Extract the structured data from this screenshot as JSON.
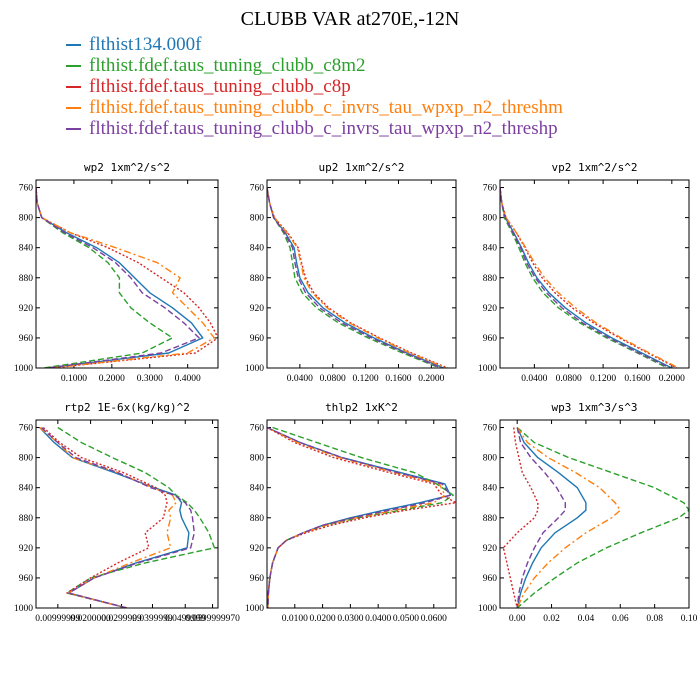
{
  "title": "CLUBB VAR at270E,-12N",
  "series": [
    {
      "name": "flthist134.000f",
      "color": "#1f77b4",
      "dash": "solid"
    },
    {
      "name": "flthist.fdef.taus_tuning_clubb_c8m2",
      "color": "#2ca02c",
      "dash": "dashed"
    },
    {
      "name": "flthist.fdef.taus_tuning_clubb_c8p",
      "color": "#d62728",
      "dash": "dotted"
    },
    {
      "name": "flthist.fdef.taus_tuning_clubb_c_invrs_tau_wpxp_n2_threshm",
      "color": "#ff7f0e",
      "dash": "dashdot"
    },
    {
      "name": "flthist.fdef.taus_tuning_clubb_c_invrs_tau_wpxp_n2_threshp",
      "color": "#7b3fa0",
      "dash": "dashed"
    }
  ],
  "chart_data": [
    {
      "type": "line",
      "title": "wp2  1xm^2/s^2",
      "xlim": [
        0,
        0.48
      ],
      "xticks": [
        0.1,
        0.2,
        0.3,
        0.4
      ],
      "xtick_labels": [
        "0.1000",
        "0.2000",
        "0.3000",
        "0.4000"
      ],
      "ylim": [
        1000,
        750
      ],
      "yticks": [
        760,
        800,
        840,
        880,
        920,
        960,
        1000
      ],
      "y": [
        760,
        780,
        800,
        820,
        840,
        860,
        880,
        900,
        920,
        940,
        960,
        980,
        1000
      ],
      "series": [
        {
          "name": "flthist134.000f",
          "values": [
            0.0,
            0.003,
            0.015,
            0.08,
            0.16,
            0.22,
            0.26,
            0.3,
            0.36,
            0.41,
            0.44,
            0.35,
            0.03
          ]
        },
        {
          "name": "flthist.fdef.taus_tuning_clubb_c8m2",
          "values": [
            0.0,
            0.003,
            0.015,
            0.07,
            0.14,
            0.19,
            0.22,
            0.22,
            0.25,
            0.3,
            0.36,
            0.28,
            0.02
          ]
        },
        {
          "name": "flthist.fdef.taus_tuning_clubb_c8p",
          "values": [
            0.0,
            0.003,
            0.015,
            0.09,
            0.19,
            0.27,
            0.33,
            0.39,
            0.43,
            0.46,
            0.48,
            0.42,
            0.04
          ]
        },
        {
          "name": "flthist.fdef.taus_tuning_clubb_c_invrs_tau_wpxp_n2_threshm",
          "values": [
            0.0,
            0.003,
            0.015,
            0.09,
            0.21,
            0.32,
            0.38,
            0.36,
            0.4,
            0.44,
            0.47,
            0.4,
            0.04
          ]
        },
        {
          "name": "flthist.fdef.taus_tuning_clubb_c_invrs_tau_wpxp_n2_threshp",
          "values": [
            0.0,
            0.003,
            0.015,
            0.075,
            0.15,
            0.21,
            0.25,
            0.28,
            0.34,
            0.39,
            0.43,
            0.33,
            0.03
          ]
        }
      ]
    },
    {
      "type": "line",
      "title": "up2  1xm^2/s^2",
      "xlim": [
        0,
        0.23
      ],
      "xticks": [
        0.04,
        0.08,
        0.12,
        0.16,
        0.2
      ],
      "xtick_labels": [
        "0.0400",
        "0.0800",
        "0.1200",
        "0.1600",
        "0.2000"
      ],
      "ylim": [
        1000,
        750
      ],
      "yticks": [
        760,
        800,
        840,
        880,
        920,
        960,
        1000
      ],
      "y": [
        760,
        780,
        800,
        820,
        840,
        860,
        880,
        900,
        920,
        940,
        960,
        980,
        1000
      ],
      "series": [
        {
          "name": "flthist134.000f",
          "values": [
            0.0,
            0.003,
            0.008,
            0.022,
            0.033,
            0.036,
            0.04,
            0.05,
            0.068,
            0.095,
            0.13,
            0.17,
            0.215
          ]
        },
        {
          "name": "flthist.fdef.taus_tuning_clubb_c8m2",
          "values": [
            0.0,
            0.003,
            0.008,
            0.02,
            0.028,
            0.031,
            0.034,
            0.043,
            0.06,
            0.087,
            0.123,
            0.165,
            0.21
          ]
        },
        {
          "name": "flthist.fdef.taus_tuning_clubb_c8p",
          "values": [
            0.0,
            0.003,
            0.009,
            0.025,
            0.038,
            0.042,
            0.047,
            0.057,
            0.075,
            0.102,
            0.137,
            0.176,
            0.22
          ]
        },
        {
          "name": "flthist.fdef.taus_tuning_clubb_c_invrs_tau_wpxp_n2_threshm",
          "values": [
            0.0,
            0.003,
            0.009,
            0.024,
            0.037,
            0.041,
            0.045,
            0.055,
            0.073,
            0.1,
            0.135,
            0.174,
            0.218
          ]
        },
        {
          "name": "flthist.fdef.taus_tuning_clubb_c_invrs_tau_wpxp_n2_threshp",
          "values": [
            0.0,
            0.003,
            0.008,
            0.021,
            0.031,
            0.034,
            0.038,
            0.047,
            0.064,
            0.091,
            0.127,
            0.168,
            0.212
          ]
        }
      ]
    },
    {
      "type": "line",
      "title": "vp2  1xm^2/s^2",
      "xlim": [
        0,
        0.22
      ],
      "xticks": [
        0.04,
        0.08,
        0.12,
        0.16,
        0.2
      ],
      "xtick_labels": [
        "0.0400",
        "0.0800",
        "0.1200",
        "0.1600",
        "0.2000"
      ],
      "ylim": [
        1000,
        750
      ],
      "yticks": [
        760,
        800,
        840,
        880,
        920,
        960,
        1000
      ],
      "y": [
        760,
        780,
        800,
        820,
        840,
        860,
        880,
        900,
        920,
        940,
        960,
        980,
        1000
      ],
      "series": [
        {
          "name": "flthist134.000f",
          "values": [
            0.0,
            0.002,
            0.006,
            0.016,
            0.025,
            0.033,
            0.043,
            0.057,
            0.076,
            0.1,
            0.13,
            0.165,
            0.2
          ]
        },
        {
          "name": "flthist.fdef.taus_tuning_clubb_c8m2",
          "values": [
            0.0,
            0.002,
            0.005,
            0.014,
            0.022,
            0.029,
            0.038,
            0.05,
            0.068,
            0.093,
            0.124,
            0.16,
            0.195
          ]
        },
        {
          "name": "flthist.fdef.taus_tuning_clubb_c8p",
          "values": [
            0.0,
            0.002,
            0.007,
            0.019,
            0.029,
            0.038,
            0.049,
            0.064,
            0.084,
            0.109,
            0.139,
            0.172,
            0.206
          ]
        },
        {
          "name": "flthist.fdef.taus_tuning_clubb_c_invrs_tau_wpxp_n2_threshm",
          "values": [
            0.0,
            0.002,
            0.007,
            0.019,
            0.03,
            0.04,
            0.052,
            0.068,
            0.088,
            0.112,
            0.141,
            0.174,
            0.208
          ]
        },
        {
          "name": "flthist.fdef.taus_tuning_clubb_c_invrs_tau_wpxp_n2_threshp",
          "values": [
            0.0,
            0.002,
            0.006,
            0.015,
            0.024,
            0.031,
            0.041,
            0.054,
            0.072,
            0.096,
            0.127,
            0.162,
            0.198
          ]
        }
      ]
    },
    {
      "type": "line",
      "title": "rtp2  1E-6x(kg/kg)^2",
      "xlim": [
        0,
        1
      ],
      "xticks": [
        0.12,
        0.3,
        0.47,
        0.64,
        0.82,
        0.97
      ],
      "xtick_labels": [
        "0.00999999",
        "0.0200000",
        "0.0299999",
        "0.0399999",
        "0.0499999",
        "0.0599999970"
      ],
      "ylim": [
        1000,
        750
      ],
      "yticks": [
        760,
        800,
        840,
        880,
        920,
        960,
        1000
      ],
      "y": [
        760,
        780,
        800,
        820,
        840,
        850,
        860,
        870,
        880,
        900,
        920,
        940,
        960,
        980,
        1000
      ],
      "series": [
        {
          "name": "flthist134.000f",
          "values": [
            0.02,
            0.1,
            0.2,
            0.43,
            0.65,
            0.77,
            0.8,
            0.79,
            0.8,
            0.84,
            0.83,
            0.55,
            0.32,
            0.18,
            0.5
          ]
        },
        {
          "name": "flthist.fdef.taus_tuning_clubb_c8m2",
          "values": [
            0.12,
            0.25,
            0.42,
            0.6,
            0.73,
            0.77,
            0.83,
            0.87,
            0.9,
            0.95,
            0.98,
            0.6,
            0.3,
            0.17,
            0.5
          ]
        },
        {
          "name": "flthist.fdef.taus_tuning_clubb_c8p",
          "values": [
            0.04,
            0.13,
            0.25,
            0.48,
            0.66,
            0.71,
            0.72,
            0.71,
            0.7,
            0.6,
            0.62,
            0.45,
            0.3,
            0.17,
            0.5
          ]
        },
        {
          "name": "flthist.fdef.taus_tuning_clubb_c_invrs_tau_wpxp_n2_threshm",
          "values": [
            0.02,
            0.12,
            0.2,
            0.45,
            0.64,
            0.75,
            0.77,
            0.73,
            0.74,
            0.72,
            0.74,
            0.52,
            0.32,
            0.18,
            0.5
          ]
        },
        {
          "name": "flthist.fdef.taus_tuning_clubb_c_invrs_tau_wpxp_n2_threshp",
          "values": [
            0.03,
            0.12,
            0.22,
            0.45,
            0.63,
            0.76,
            0.82,
            0.85,
            0.86,
            0.87,
            0.85,
            0.56,
            0.32,
            0.18,
            0.5
          ]
        }
      ]
    },
    {
      "type": "line",
      "title": "thlp2  1xK^2",
      "xlim": [
        0,
        0.068
      ],
      "xticks": [
        0.01,
        0.02,
        0.03,
        0.04,
        0.05,
        0.06
      ],
      "xtick_labels": [
        "0.0100",
        "0.0200",
        "0.0300",
        "0.0400",
        "0.0500",
        "0.0600"
      ],
      "ylim": [
        1000,
        750
      ],
      "yticks": [
        760,
        800,
        840,
        880,
        920,
        960,
        1000
      ],
      "y": [
        760,
        780,
        800,
        820,
        835,
        850,
        860,
        870,
        880,
        890,
        900,
        910,
        920,
        940,
        960,
        980,
        1000
      ],
      "series": [
        {
          "name": "flthist134.000f",
          "values": [
            0.0,
            0.012,
            0.027,
            0.048,
            0.064,
            0.066,
            0.055,
            0.042,
            0.03,
            0.02,
            0.013,
            0.007,
            0.004,
            0.002,
            0.001,
            0.0005,
            0.0003
          ]
        },
        {
          "name": "flthist.fdef.taus_tuning_clubb_c8m2",
          "values": [
            0.002,
            0.018,
            0.034,
            0.053,
            0.061,
            0.067,
            0.063,
            0.048,
            0.033,
            0.021,
            0.013,
            0.007,
            0.004,
            0.002,
            0.001,
            0.0005,
            0.0003
          ]
        },
        {
          "name": "flthist.fdef.taus_tuning_clubb_c8p",
          "values": [
            0.0,
            0.01,
            0.024,
            0.044,
            0.06,
            0.063,
            0.068,
            0.05,
            0.035,
            0.023,
            0.014,
            0.007,
            0.004,
            0.002,
            0.001,
            0.0005,
            0.0003
          ]
        },
        {
          "name": "flthist.fdef.taus_tuning_clubb_c_invrs_tau_wpxp_n2_threshm",
          "values": [
            0.0,
            0.011,
            0.026,
            0.046,
            0.062,
            0.064,
            0.06,
            0.046,
            0.032,
            0.021,
            0.013,
            0.007,
            0.004,
            0.002,
            0.001,
            0.0005,
            0.0003
          ]
        },
        {
          "name": "flthist.fdef.taus_tuning_clubb_c_invrs_tau_wpxp_n2_threshp",
          "values": [
            0.0,
            0.012,
            0.027,
            0.047,
            0.063,
            0.066,
            0.057,
            0.044,
            0.031,
            0.02,
            0.013,
            0.007,
            0.004,
            0.002,
            0.001,
            0.0005,
            0.0003
          ]
        }
      ]
    },
    {
      "type": "line",
      "title": "wp3  1xm^3/s^3",
      "xlim": [
        -0.01,
        0.1
      ],
      "xticks": [
        0,
        0.02,
        0.04,
        0.06,
        0.08,
        0.1
      ],
      "xtick_labels": [
        "0.00",
        "0.02",
        "0.04",
        "0.06",
        "0.08",
        "0.10"
      ],
      "ylim": [
        1000,
        750
      ],
      "yticks": [
        760,
        800,
        840,
        880,
        920,
        960,
        1000
      ],
      "y": [
        760,
        780,
        800,
        820,
        840,
        860,
        870,
        880,
        900,
        920,
        940,
        960,
        980,
        1000
      ],
      "series": [
        {
          "name": "flthist134.000f",
          "values": [
            0.0,
            0.004,
            0.012,
            0.024,
            0.035,
            0.04,
            0.04,
            0.035,
            0.022,
            0.014,
            0.009,
            0.005,
            0.002,
            0.0
          ]
        },
        {
          "name": "flthist.fdef.taus_tuning_clubb_c8m2",
          "values": [
            0.0,
            0.01,
            0.03,
            0.055,
            0.08,
            0.097,
            0.1,
            0.094,
            0.072,
            0.052,
            0.035,
            0.022,
            0.01,
            0.0
          ]
        },
        {
          "name": "flthist.fdef.taus_tuning_clubb_c8p",
          "values": [
            -0.002,
            -0.001,
            0.001,
            0.003,
            0.008,
            0.012,
            0.012,
            0.01,
            0.0,
            -0.008,
            -0.006,
            -0.004,
            -0.002,
            0.0
          ]
        },
        {
          "name": "flthist.fdef.taus_tuning_clubb_c_invrs_tau_wpxp_n2_threshm",
          "values": [
            0.0,
            0.006,
            0.018,
            0.034,
            0.048,
            0.057,
            0.06,
            0.055,
            0.04,
            0.028,
            0.018,
            0.01,
            0.004,
            0.0
          ]
        },
        {
          "name": "flthist.fdef.taus_tuning_clubb_c_invrs_tau_wpxp_n2_threshp",
          "values": [
            0.0,
            0.002,
            0.008,
            0.016,
            0.023,
            0.028,
            0.028,
            0.024,
            0.015,
            0.01,
            0.006,
            0.003,
            0.001,
            0.0
          ]
        }
      ]
    }
  ]
}
